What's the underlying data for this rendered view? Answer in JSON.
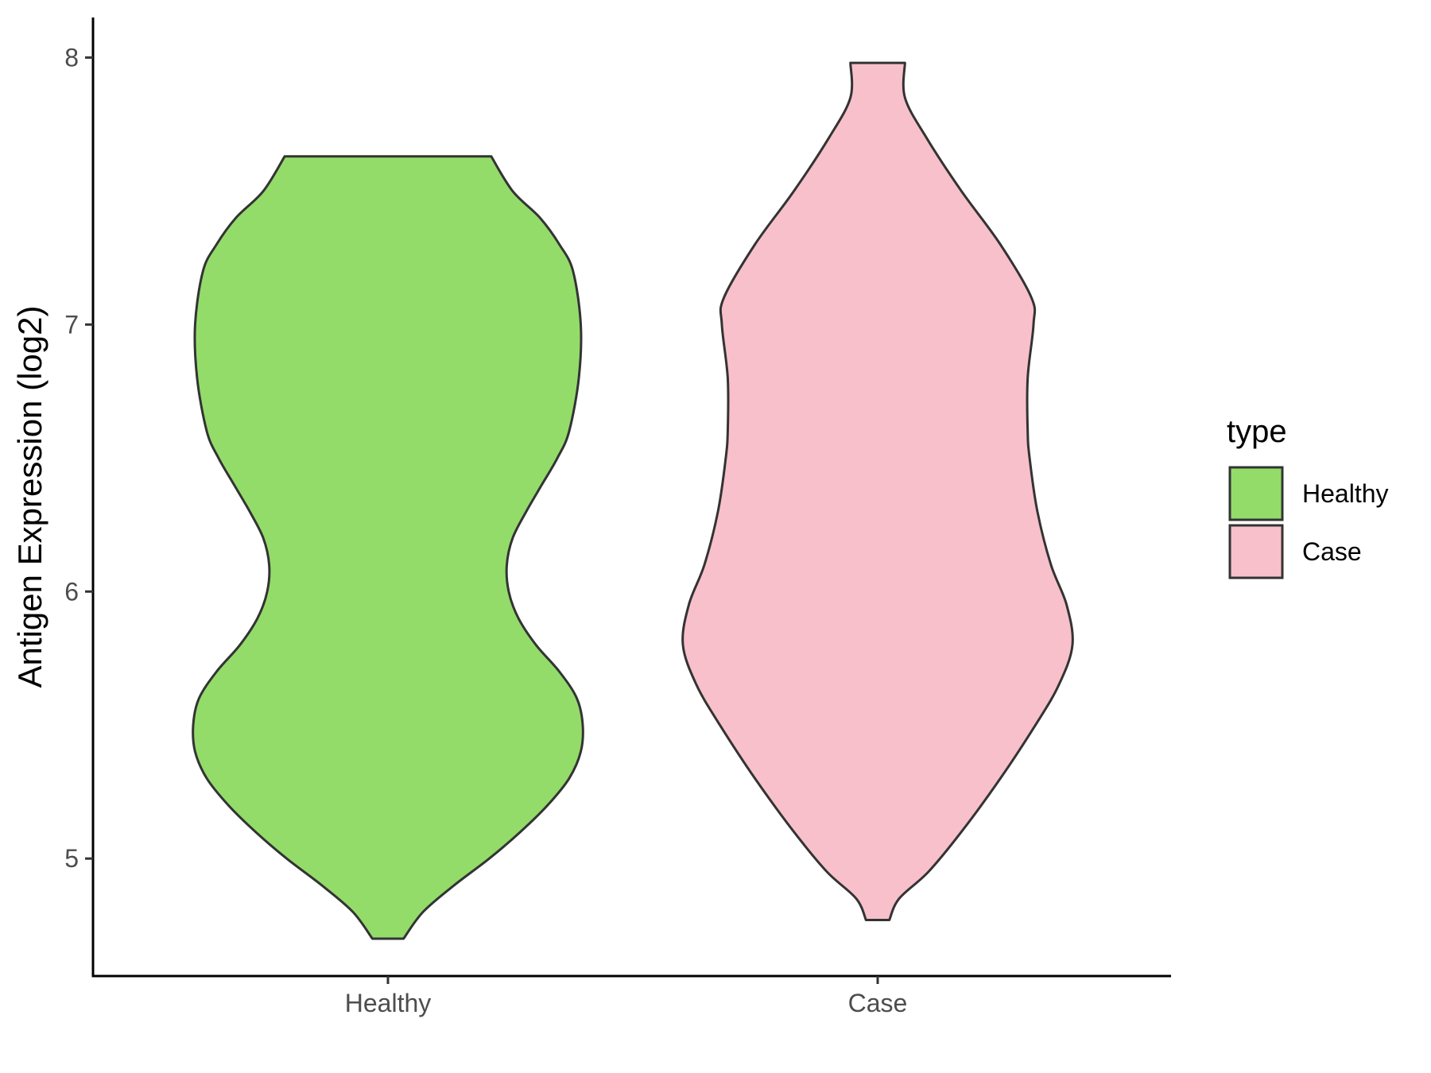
{
  "chart_data": {
    "type": "violin",
    "title": "",
    "xlabel": "",
    "ylabel": "Antigen Expression (log2)",
    "ylim": [
      4.56,
      8.15
    ],
    "yticks": [
      5,
      6,
      7,
      8
    ],
    "grid": false,
    "categories": [
      "Healthy",
      "Case"
    ],
    "legend": {
      "title": "type",
      "position": "right",
      "entries": [
        {
          "label": "Healthy",
          "color": "#93dc6a"
        },
        {
          "label": "Case",
          "color": "#f8c0cb"
        }
      ]
    },
    "series": [
      {
        "name": "Healthy",
        "color": "#93dc6a",
        "min": 4.7,
        "max": 7.63,
        "density_profile": [
          [
            4.7,
            0.08
          ],
          [
            4.8,
            0.18
          ],
          [
            4.9,
            0.34
          ],
          [
            5.0,
            0.52
          ],
          [
            5.1,
            0.68
          ],
          [
            5.2,
            0.82
          ],
          [
            5.3,
            0.93
          ],
          [
            5.4,
            0.99
          ],
          [
            5.5,
            1.0
          ],
          [
            5.6,
            0.97
          ],
          [
            5.7,
            0.88
          ],
          [
            5.8,
            0.76
          ],
          [
            5.9,
            0.67
          ],
          [
            6.0,
            0.62
          ],
          [
            6.1,
            0.61
          ],
          [
            6.2,
            0.64
          ],
          [
            6.3,
            0.71
          ],
          [
            6.4,
            0.79
          ],
          [
            6.5,
            0.87
          ],
          [
            6.6,
            0.93
          ],
          [
            6.8,
            0.98
          ],
          [
            7.0,
            0.99
          ],
          [
            7.2,
            0.95
          ],
          [
            7.3,
            0.88
          ],
          [
            7.4,
            0.78
          ],
          [
            7.5,
            0.64
          ],
          [
            7.63,
            0.53
          ]
        ]
      },
      {
        "name": "Case",
        "color": "#f8c0cb",
        "min": 4.77,
        "max": 7.98,
        "density_profile": [
          [
            4.77,
            0.06
          ],
          [
            4.85,
            0.11
          ],
          [
            4.95,
            0.26
          ],
          [
            5.1,
            0.43
          ],
          [
            5.3,
            0.63
          ],
          [
            5.5,
            0.81
          ],
          [
            5.65,
            0.93
          ],
          [
            5.8,
            1.0
          ],
          [
            5.95,
            0.97
          ],
          [
            6.1,
            0.89
          ],
          [
            6.3,
            0.82
          ],
          [
            6.5,
            0.78
          ],
          [
            6.6,
            0.77
          ],
          [
            6.8,
            0.77
          ],
          [
            7.0,
            0.8
          ],
          [
            7.1,
            0.79
          ],
          [
            7.3,
            0.63
          ],
          [
            7.5,
            0.43
          ],
          [
            7.7,
            0.25
          ],
          [
            7.85,
            0.14
          ],
          [
            7.98,
            0.14
          ]
        ]
      }
    ]
  }
}
